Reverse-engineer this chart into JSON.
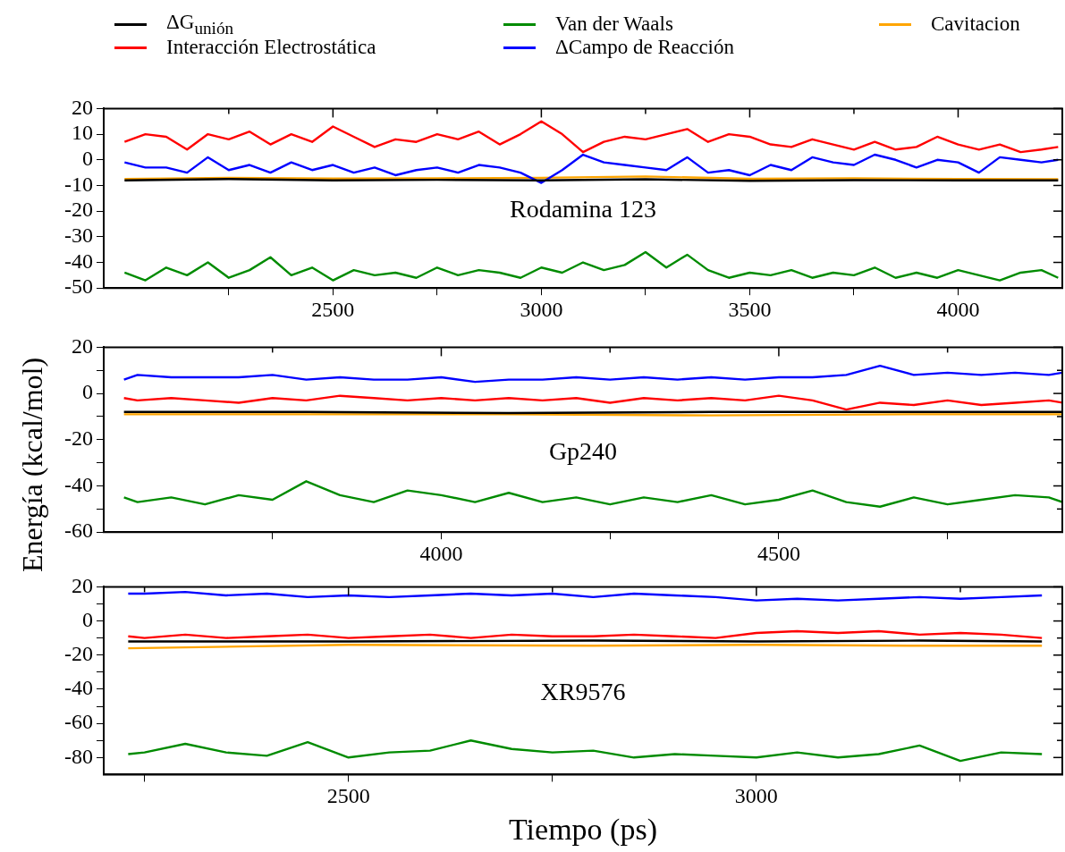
{
  "chart_data": [
    {
      "type": "line",
      "legend": "top",
      "annotations": [
        "Rodamina 123"
      ],
      "xlim": [
        1950,
        4250
      ],
      "ylim": [
        -50,
        20
      ],
      "xticks": [
        {
          "value": 2250,
          "label": null
        },
        2500,
        {
          "value": 2750,
          "label": null
        },
        3000,
        {
          "value": 3250,
          "label": null
        },
        3500,
        {
          "value": 3750,
          "label": null
        },
        4000
      ],
      "yticks": [
        -50,
        -40,
        -30,
        -20,
        -10,
        0,
        10,
        20
      ],
      "x": [
        2000,
        2050,
        2100,
        2150,
        2200,
        2250,
        2300,
        2350,
        2400,
        2450,
        2500,
        2550,
        2600,
        2650,
        2700,
        2750,
        2800,
        2850,
        2900,
        2950,
        3000,
        3050,
        3100,
        3150,
        3200,
        3250,
        3300,
        3350,
        3400,
        3450,
        3500,
        3550,
        3600,
        3650,
        3700,
        3750,
        3800,
        3850,
        3900,
        3950,
        4000,
        4050,
        4100,
        4150,
        4200,
        4240
      ],
      "series": [
        {
          "name": "ΔG$_{unión}$",
          "color": "#000000",
          "x": [
            2000,
            2250,
            2500,
            2750,
            3000,
            3250,
            3500,
            3750,
            4000,
            4240
          ],
          "values": [
            -8,
            -7.5,
            -8,
            -7.8,
            -8,
            -7.6,
            -8.2,
            -7.9,
            -8,
            -8
          ]
        },
        {
          "name": "Interacción Electrostática",
          "color": "#ff0000",
          "values": [
            7,
            10,
            9,
            4,
            10,
            8,
            11,
            6,
            10,
            7,
            13,
            9,
            5,
            8,
            7,
            10,
            8,
            11,
            6,
            10,
            15,
            10,
            3,
            7,
            9,
            8,
            10,
            12,
            7,
            10,
            9,
            6,
            5,
            8,
            6,
            4,
            7,
            4,
            5,
            9,
            6,
            4,
            6,
            3,
            4,
            5
          ]
        },
        {
          "name": "Van der Waals",
          "color": "#008b00",
          "values": [
            -44,
            -47,
            -42,
            -45,
            -40,
            -46,
            -43,
            -38,
            -45,
            -42,
            -47,
            -43,
            -45,
            -44,
            -46,
            -42,
            -45,
            -43,
            -44,
            -46,
            -42,
            -44,
            -40,
            -43,
            -41,
            -36,
            -42,
            -37,
            -43,
            -46,
            -44,
            -45,
            -43,
            -46,
            -44,
            -45,
            -42,
            -46,
            -44,
            -46,
            -43,
            -45,
            -47,
            -44,
            -43,
            -46
          ]
        },
        {
          "name": "ΔCampo de Reacción",
          "color": "#0000ff",
          "values": [
            -1,
            -3,
            -3,
            -5,
            1,
            -4,
            -2,
            -5,
            -1,
            -4,
            -2,
            -5,
            -3,
            -6,
            -4,
            -3,
            -5,
            -2,
            -3,
            -5,
            -9,
            -4,
            2,
            -1,
            -2,
            -3,
            -4,
            1,
            -5,
            -4,
            -6,
            -2,
            -4,
            1,
            -1,
            -2,
            2,
            0,
            -3,
            0,
            -1,
            -5,
            1,
            0,
            -1,
            0
          ]
        },
        {
          "name": "Cavitacion",
          "color": "#ffa500",
          "x": [
            2000,
            2250,
            2500,
            2750,
            3000,
            3250,
            3500,
            3750,
            4000,
            4240
          ],
          "values": [
            -7.5,
            -7,
            -7.3,
            -7.2,
            -7,
            -6.5,
            -7.4,
            -7.2,
            -7.5,
            -7.6
          ]
        }
      ]
    },
    {
      "type": "line",
      "ylabel": "Energía (kcal/mol)",
      "annotations": [
        "Gp240"
      ],
      "xlim": [
        3500,
        4920
      ],
      "ylim": [
        -60,
        20
      ],
      "xticks": [
        {
          "value": 3750,
          "label": null
        },
        4000,
        {
          "value": 4250,
          "label": null
        },
        4500,
        {
          "value": 4750,
          "label": null
        }
      ],
      "yticks": [
        -60,
        {
          "value": -50,
          "label": null
        },
        -40,
        {
          "value": -30,
          "label": null
        },
        -20,
        {
          "value": -10,
          "label": null
        },
        0,
        {
          "value": 10,
          "label": null
        },
        20
      ],
      "x": [
        3530,
        3550,
        3600,
        3650,
        3700,
        3750,
        3800,
        3850,
        3900,
        3950,
        4000,
        4050,
        4100,
        4150,
        4200,
        4250,
        4300,
        4350,
        4400,
        4450,
        4500,
        4550,
        4600,
        4650,
        4700,
        4750,
        4800,
        4850,
        4900,
        4920
      ],
      "series": [
        {
          "color": "#000000",
          "x": [
            3530,
            3800,
            4100,
            4400,
            4700,
            4920
          ],
          "values": [
            -8,
            -8,
            -8.5,
            -8,
            -8,
            -8
          ]
        },
        {
          "color": "#ff0000",
          "values": [
            -2,
            -3,
            -2,
            -3,
            -4,
            -2,
            -3,
            -1,
            -2,
            -3,
            -2,
            -3,
            -2,
            -3,
            -2,
            -4,
            -2,
            -3,
            -2,
            -3,
            -1,
            -3,
            -7,
            -4,
            -5,
            -3,
            -5,
            -4,
            -3,
            -4
          ]
        },
        {
          "color": "#008b00",
          "values": [
            -45,
            -47,
            -45,
            -48,
            -44,
            -46,
            -38,
            -44,
            -47,
            -42,
            -44,
            -47,
            -43,
            -47,
            -45,
            -48,
            -45,
            -47,
            -44,
            -48,
            -46,
            -42,
            -47,
            -49,
            -45,
            -48,
            -46,
            -44,
            -45,
            -47
          ]
        },
        {
          "color": "#0000ff",
          "values": [
            6,
            8,
            7,
            7,
            7,
            8,
            6,
            7,
            6,
            6,
            7,
            5,
            6,
            6,
            7,
            6,
            7,
            6,
            7,
            6,
            7,
            7,
            8,
            12,
            8,
            9,
            8,
            9,
            8,
            9
          ]
        },
        {
          "color": "#ffa500",
          "x": [
            3530,
            3800,
            4100,
            4400,
            4700,
            4920
          ],
          "values": [
            -9,
            -9,
            -9,
            -9.5,
            -9,
            -9
          ]
        }
      ]
    },
    {
      "type": "line",
      "xlabel": "Tiempo (ps)",
      "annotations": [
        "XR9576"
      ],
      "xlim": [
        2200,
        3375
      ],
      "ylim": [
        -90,
        20
      ],
      "xticks": [
        {
          "value": 2250,
          "label": null
        },
        2500,
        {
          "value": 2750,
          "label": null
        },
        3000,
        {
          "value": 3250,
          "label": null
        }
      ],
      "yticks": [
        -80,
        {
          "value": -70,
          "label": null
        },
        -60,
        {
          "value": -50,
          "label": null
        },
        -40,
        {
          "value": -30,
          "label": null
        },
        -20,
        {
          "value": -10,
          "label": null
        },
        0,
        {
          "value": 10,
          "label": null
        },
        20
      ],
      "x": [
        2230,
        2250,
        2300,
        2350,
        2400,
        2450,
        2500,
        2550,
        2600,
        2650,
        2700,
        2750,
        2800,
        2850,
        2900,
        2950,
        3000,
        3050,
        3100,
        3150,
        3200,
        3250,
        3300,
        3350
      ],
      "series": [
        {
          "color": "#000000",
          "x": [
            2230,
            2500,
            2800,
            3000,
            3200,
            3350
          ],
          "values": [
            -12,
            -12,
            -11.5,
            -12,
            -11.5,
            -12
          ]
        },
        {
          "color": "#ff0000",
          "values": [
            -9,
            -10,
            -8,
            -10,
            -9,
            -8,
            -10,
            -9,
            -8,
            -10,
            -8,
            -9,
            -9,
            -8,
            -9,
            -10,
            -7,
            -6,
            -7,
            -6,
            -8,
            -7,
            -8,
            -10
          ]
        },
        {
          "color": "#008b00",
          "values": [
            -78,
            -77,
            -72,
            -77,
            -79,
            -71,
            -80,
            -77,
            -76,
            -70,
            -75,
            -77,
            -76,
            -80,
            -78,
            -79,
            -80,
            -77,
            -80,
            -78,
            -73,
            -82,
            -77,
            -78
          ]
        },
        {
          "color": "#0000ff",
          "values": [
            16,
            16,
            17,
            15,
            16,
            14,
            15,
            14,
            15,
            16,
            15,
            16,
            14,
            16,
            15,
            14,
            12,
            13,
            12,
            13,
            14,
            13,
            14,
            15
          ]
        },
        {
          "color": "#ffa500",
          "x": [
            2230,
            2500,
            2800,
            3000,
            3200,
            3350
          ],
          "values": [
            -16,
            -14,
            -14.5,
            -14,
            -14.5,
            -14.5
          ]
        }
      ]
    }
  ]
}
